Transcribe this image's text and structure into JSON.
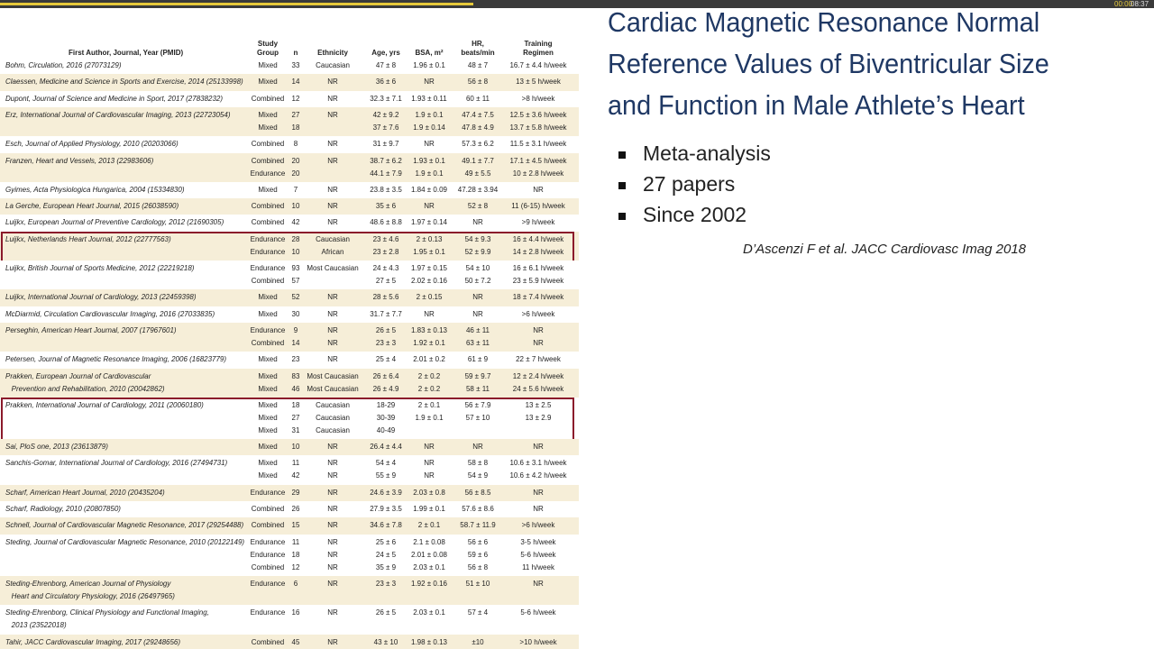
{
  "player": {
    "current": "00:00",
    "duration": "08:37"
  },
  "slide": {
    "title": [
      "Cardiac Magnetic Resonance Normal",
      "Reference Values of Biventricular Size",
      "and Function in Male Athlete’s Heart"
    ],
    "bullets": [
      "Meta-analysis",
      "27 papers",
      "Since 2002"
    ],
    "citation": "D’Ascenzi F et al.  JACC Cardiovasc Imag 2018"
  },
  "table": {
    "header": [
      [
        "First Author, Journal, Year (PMID)"
      ],
      [
        "Study",
        "Group"
      ],
      [
        "n"
      ],
      [
        "Ethnicity"
      ],
      [
        "Age, yrs"
      ],
      [
        "BSA, m²"
      ],
      [
        "HR,",
        "beats/min"
      ],
      [
        "Training",
        "Regimen"
      ]
    ],
    "rows": [
      {
        "author": [
          "Bohm, Circulation, 2016 (27073129)"
        ],
        "cells": [
          [
            "Mixed",
            "33",
            "Caucasian",
            "47 ± 8",
            "1.96 ± 0.1",
            "48 ± 7",
            "16.7 ± 4.4 h/week"
          ]
        ]
      },
      {
        "author": [
          "Claessen, Medicine and Science in Sports and Exercise, 2014 (25133998)"
        ],
        "cells": [
          [
            "Mixed",
            "14",
            "NR",
            "36 ± 6",
            "NR",
            "56 ± 8",
            "13 ± 5 h/week"
          ]
        ]
      },
      {
        "author": [
          "Dupont, Journal of Science and Medicine in Sport, 2017 (27838232)"
        ],
        "cells": [
          [
            "Combined",
            "12",
            "NR",
            "32.3 ± 7.1",
            "1.93 ± 0.11",
            "60 ± 11",
            ">8 h/week"
          ]
        ]
      },
      {
        "author": [
          "Erz, International Journal of Cardiovascular Imaging, 2013 (22723054)"
        ],
        "cells": [
          [
            "Mixed",
            "27",
            "NR",
            "42 ± 9.2",
            "1.9 ± 0.1",
            "47.4 ± 7.5",
            "12.5 ± 3.6 h/week"
          ],
          [
            "Mixed",
            "18",
            null,
            "37 ± 7.6",
            "1.9 ± 0.14",
            "47.8 ± 4.9",
            "13.7 ± 5.8 h/week"
          ]
        ]
      },
      {
        "author": [
          "Esch, Journal of Applied Physiology, 2010 (20203066)"
        ],
        "cells": [
          [
            "Combined",
            "8",
            "NR",
            "31 ± 9.7",
            "NR",
            "57.3 ± 6.2",
            "11.5 ± 3.1 h/week"
          ]
        ]
      },
      {
        "author": [
          "Franzen, Heart and Vessels, 2013 (22983606)"
        ],
        "cells": [
          [
            "Combined",
            "20",
            "NR",
            "38.7 ± 6.2",
            "1.93 ± 0.1",
            "49.1 ± 7.7",
            "17.1 ± 4.5 h/week"
          ],
          [
            "Endurance",
            "20",
            null,
            "44.1 ± 7.9",
            "1.9 ± 0.1",
            "49 ± 5.5",
            "10 ± 2.8 h/week"
          ]
        ]
      },
      {
        "author": [
          "Gyimes, Acta Physiologica Hungarica, 2004 (15334830)"
        ],
        "cells": [
          [
            "Mixed",
            "7",
            "NR",
            "23.8 ± 3.5",
            "1.84 ± 0.09",
            "47.28 ± 3.94",
            "NR"
          ]
        ]
      },
      {
        "author": [
          "La Gerche, European Heart Journal, 2015 (26038590)"
        ],
        "cells": [
          [
            "Combined",
            "10",
            "NR",
            "35 ± 6",
            "NR",
            "52 ± 8",
            "11 (6-15) h/week"
          ]
        ]
      },
      {
        "author": [
          "Luijkx, European Journal of Preventive Cardiology, 2012 (21690305)"
        ],
        "cells": [
          [
            "Combined",
            "42",
            "NR",
            "48.6 ± 8.8",
            "1.97 ± 0.14",
            "NR",
            ">9 h/week"
          ]
        ]
      },
      {
        "author": [
          "Luijkx, Netherlands Heart Journal, 2012 (22777563)"
        ],
        "boxed": true,
        "cells": [
          [
            "Endurance",
            "28",
            "Caucasian",
            "23 ± 4.6",
            "2 ± 0.13",
            "54 ± 9.3",
            "16 ± 4.4 h/week"
          ],
          [
            "Endurance",
            "10",
            "African",
            "23 ± 2.8",
            "1.95 ± 0.1",
            "52 ± 9.9",
            "14 ± 2.8 h/week"
          ]
        ]
      },
      {
        "author": [
          "Luijkx, British Journal of Sports Medicine, 2012 (22219218)"
        ],
        "cells": [
          [
            "Endurance",
            "93",
            "Most Caucasian",
            "24 ± 4.3",
            "1.97 ± 0.15",
            "54 ± 10",
            "16 ± 6.1 h/week"
          ],
          [
            "Combined",
            "57",
            null,
            "27 ± 5",
            "2.02 ± 0.16",
            "50 ± 7.2",
            "23 ± 5.9 h/week"
          ]
        ]
      },
      {
        "author": [
          "Luijkx, International Journal of Cardiology, 2013 (22459398)"
        ],
        "cells": [
          [
            "Mixed",
            "52",
            "NR",
            "28 ± 5.6",
            "2 ± 0.15",
            "NR",
            "18 ± 7.4 h/week"
          ]
        ]
      },
      {
        "author": [
          "McDiarmid, Circulation Cardiovascular Imaging, 2016 (27033835)"
        ],
        "cells": [
          [
            "Mixed",
            "30",
            "NR",
            "31.7 ± 7.7",
            "NR",
            "NR",
            ">6 h/week"
          ]
        ]
      },
      {
        "author": [
          "Perseghin, American Heart Journal, 2007 (17967601)"
        ],
        "cells": [
          [
            "Endurance",
            "9",
            "NR",
            "26 ± 5",
            "1.83 ± 0.13",
            "46 ± 11",
            "NR"
          ],
          [
            "Combined",
            "14",
            "NR",
            "23 ± 3",
            "1.92 ± 0.1",
            "63 ± 11",
            "NR"
          ]
        ]
      },
      {
        "author": [
          "Petersen, Journal of Magnetic Resonance Imaging, 2006 (16823779)"
        ],
        "cells": [
          [
            "Mixed",
            "23",
            "NR",
            "25 ± 4",
            "2.01 ± 0.2",
            "61 ± 9",
            "22 ± 7 h/week"
          ]
        ]
      },
      {
        "author": [
          "Prakken, European Journal of Cardiovascular",
          "   Prevention and Rehabilitation, 2010 (20042862)"
        ],
        "cells": [
          [
            "Mixed",
            "83",
            "Most Caucasian",
            "26 ± 6.4",
            "2 ± 0.2",
            "59 ± 9.7",
            "12 ± 2.4 h/week"
          ],
          [
            "Mixed",
            "46",
            "Most Caucasian",
            "26 ± 4.9",
            "2 ± 0.2",
            "58 ± 11",
            "24 ± 5.6 h/week"
          ]
        ]
      },
      {
        "author": [
          "Prakken, International Journal of Cardiology, 2011 (20060180)"
        ],
        "boxed": true,
        "cells": [
          [
            "Mixed",
            "18",
            "Caucasian",
            "18-29",
            "2 ± 0.1",
            "56 ± 7.9",
            "13 ± 2.5"
          ],
          [
            "Mixed",
            "27",
            "Caucasian",
            "30-39",
            "1.9 ± 0.1",
            "57 ± 10",
            "13 ± 2.9"
          ],
          [
            "Mixed",
            "31",
            "Caucasian",
            "40-49",
            null,
            null,
            null
          ]
        ]
      },
      {
        "author": [
          "Sai, PloS one, 2013 (23613879)"
        ],
        "cells": [
          [
            "Mixed",
            "10",
            "NR",
            "26.4 ± 4.4",
            "NR",
            "NR",
            "NR"
          ]
        ]
      },
      {
        "author": [
          "Sanchis-Gomar, International Journal of Cardiology, 2016 (27494731)"
        ],
        "cells": [
          [
            "Mixed",
            "11",
            "NR",
            "54 ± 4",
            "NR",
            "58 ± 8",
            "10.6 ± 3.1 h/week"
          ],
          [
            "Mixed",
            "42",
            "NR",
            "55 ± 9",
            "NR",
            "54 ± 9",
            "10.6 ± 4.2 h/week"
          ]
        ]
      },
      {
        "author": [
          "Scharf, American Heart Journal, 2010 (20435204)"
        ],
        "cells": [
          [
            "Endurance",
            "29",
            "NR",
            "24.6 ± 3.9",
            "2.03 ± 0.8",
            "56 ± 8.5",
            "NR"
          ]
        ]
      },
      {
        "author": [
          "Scharf, Radiology, 2010 (20807850)"
        ],
        "cells": [
          [
            "Combined",
            "26",
            "NR",
            "27.9 ± 3.5",
            "1.99 ± 0.1",
            "57.6 ± 8.6",
            "NR"
          ]
        ]
      },
      {
        "author": [
          "Schnell, Journal of Cardiovascular Magnetic Resonance, 2017 (29254488)"
        ],
        "cells": [
          [
            "Combined",
            "15",
            "NR",
            "34.6 ± 7.8",
            "2 ± 0.1",
            "58.7 ± 11.9",
            ">6 h/week"
          ]
        ]
      },
      {
        "author": [
          "Steding, Journal of Cardiovascular Magnetic Resonance, 2010 (20122149)"
        ],
        "cells": [
          [
            "Endurance",
            "11",
            "NR",
            "25 ± 6",
            "2.1 ± 0.08",
            "56 ± 6",
            "3-5 h/week"
          ],
          [
            "Endurance",
            "18",
            "NR",
            "24 ± 5",
            "2.01 ± 0.08",
            "59 ± 6",
            "5-6 h/week"
          ],
          [
            "Combined",
            "12",
            "NR",
            "35 ± 9",
            "2.03 ± 0.1",
            "56 ± 8",
            "11 h/week"
          ]
        ]
      },
      {
        "author": [
          "Steding-Ehrenborg, American Journal of Physiology",
          "   Heart and Circulatory Physiology, 2016 (26497965)"
        ],
        "cells": [
          [
            "Endurance",
            "6",
            "NR",
            "23 ± 3",
            "1.92 ± 0.16",
            "51 ± 10",
            "NR"
          ]
        ]
      },
      {
        "author": [
          "Steding-Ehrenborg, Clinical Physiology and Functional Imaging,",
          "   2013 (23522018)"
        ],
        "cells": [
          [
            "Endurance",
            "16",
            "NR",
            "26 ± 5",
            "2.03 ± 0.1",
            "57 ± 4",
            "5-6 h/week"
          ]
        ]
      },
      {
        "author": [
          "Tahir, JACC Cardiovascular Imaging, 2017 (29248656)"
        ],
        "cells": [
          [
            "Combined",
            "45",
            "NR",
            "43 ± 10",
            "1.98 ± 0.13",
            "±10",
            ">10 h/week"
          ]
        ]
      }
    ]
  }
}
